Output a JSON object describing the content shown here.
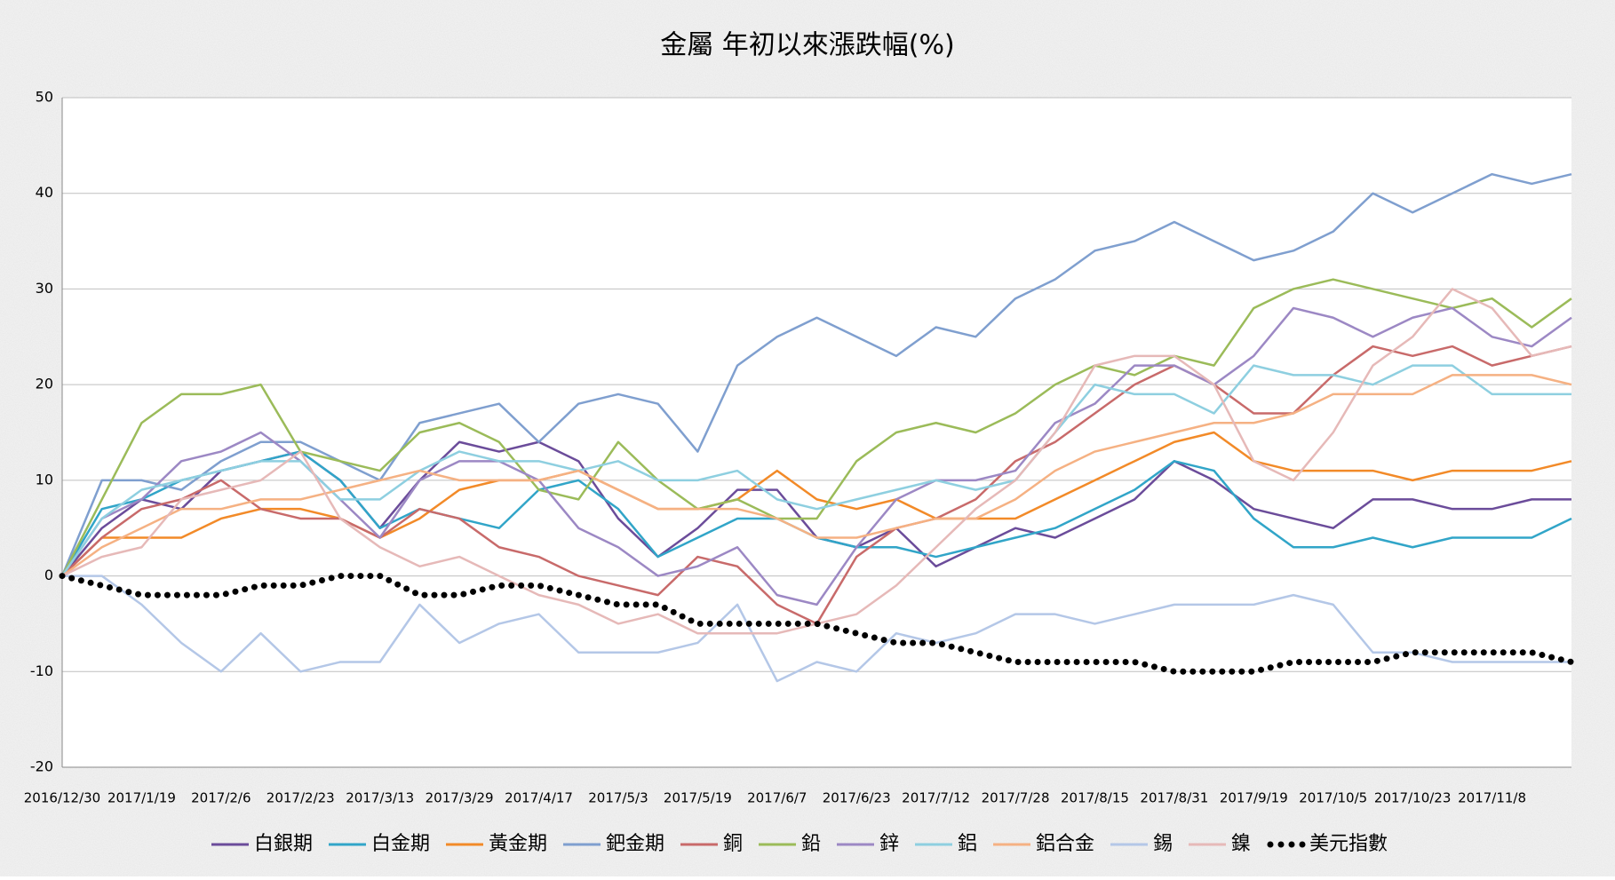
{
  "chart_data": {
    "type": "line",
    "title": "金屬 年初以來漲跌幅(%)",
    "categories": [
      "2016/12/30",
      null,
      "2017/1/19",
      null,
      "2017/2/6",
      null,
      "2017/2/23",
      null,
      "2017/3/13",
      null,
      "2017/3/29",
      null,
      "2017/4/17",
      null,
      "2017/5/3",
      null,
      "2017/5/19",
      null,
      "2017/6/7",
      null,
      "2017/6/23",
      null,
      "2017/7/12",
      null,
      "2017/7/28",
      null,
      "2017/8/15",
      null,
      "2017/8/31",
      null,
      "2017/9/19",
      null,
      "2017/10/5",
      null,
      "2017/10/23",
      null,
      "2017/11/8",
      null,
      null
    ],
    "ylim": [
      -20,
      50
    ],
    "yticks": [
      -20,
      -10,
      0,
      10,
      20,
      30,
      40,
      50
    ],
    "grid": true,
    "legend": "bottom",
    "series": [
      {
        "name": "白銀期",
        "color": "#6b4c9a",
        "values": [
          0,
          5,
          8,
          7,
          11,
          12,
          13,
          10,
          5,
          10,
          14,
          13,
          14,
          12,
          6,
          2,
          5,
          9,
          9,
          4,
          3,
          5,
          1,
          3,
          5,
          4,
          6,
          8,
          12,
          10,
          7,
          6,
          5,
          8,
          8,
          7,
          7,
          8,
          8
        ]
      },
      {
        "name": "白金期",
        "color": "#31a5c8",
        "values": [
          0,
          7,
          8,
          10,
          11,
          12,
          13,
          10,
          5,
          7,
          6,
          5,
          9,
          10,
          7,
          2,
          4,
          6,
          6,
          4,
          3,
          3,
          2,
          3,
          4,
          5,
          7,
          9,
          12,
          11,
          6,
          3,
          3,
          4,
          3,
          4,
          4,
          4,
          6
        ]
      },
      {
        "name": "黃金期",
        "color": "#f28a28",
        "values": [
          0,
          4,
          4,
          4,
          6,
          7,
          7,
          6,
          4,
          6,
          9,
          10,
          10,
          11,
          9,
          7,
          7,
          8,
          11,
          8,
          7,
          8,
          6,
          6,
          6,
          8,
          10,
          12,
          14,
          15,
          12,
          11,
          11,
          11,
          10,
          11,
          11,
          11,
          12
        ]
      },
      {
        "name": "鈀金期",
        "color": "#7f9fcf",
        "values": [
          0,
          10,
          10,
          9,
          12,
          14,
          14,
          12,
          10,
          16,
          17,
          18,
          14,
          18,
          19,
          18,
          13,
          22,
          25,
          27,
          25,
          23,
          26,
          25,
          29,
          31,
          34,
          35,
          37,
          35,
          33,
          34,
          36,
          40,
          38,
          40,
          42,
          41,
          42
        ]
      },
      {
        "name": "銅",
        "color": "#c86a6a",
        "values": [
          0,
          4,
          7,
          8,
          10,
          7,
          6,
          6,
          4,
          7,
          6,
          3,
          2,
          0,
          -1,
          -2,
          2,
          1,
          -3,
          -5,
          2,
          5,
          6,
          8,
          12,
          14,
          17,
          20,
          22,
          20,
          17,
          17,
          21,
          24,
          23,
          24,
          22,
          23,
          24
        ]
      },
      {
        "name": "鉛",
        "color": "#9bbb59",
        "values": [
          0,
          8,
          16,
          19,
          19,
          20,
          13,
          12,
          11,
          15,
          16,
          14,
          9,
          8,
          14,
          10,
          7,
          8,
          6,
          6,
          12,
          15,
          16,
          15,
          17,
          20,
          22,
          21,
          23,
          22,
          28,
          30,
          31,
          30,
          29,
          28,
          29,
          26,
          29
        ]
      },
      {
        "name": "鋅",
        "color": "#9c88c4",
        "values": [
          0,
          6,
          8,
          12,
          13,
          15,
          12,
          8,
          4,
          10,
          12,
          12,
          10,
          5,
          3,
          0,
          1,
          3,
          -2,
          -3,
          3,
          8,
          10,
          10,
          11,
          16,
          18,
          22,
          22,
          20,
          23,
          28,
          27,
          25,
          27,
          28,
          25,
          24,
          27
        ]
      },
      {
        "name": "鋁",
        "color": "#8ecfe0",
        "values": [
          0,
          6,
          9,
          10,
          11,
          12,
          12,
          8,
          8,
          11,
          13,
          12,
          12,
          11,
          12,
          10,
          10,
          11,
          8,
          7,
          8,
          9,
          10,
          9,
          10,
          15,
          20,
          19,
          19,
          17,
          22,
          21,
          21,
          20,
          22,
          22,
          19,
          19,
          19
        ]
      },
      {
        "name": "鋁合金",
        "color": "#f5b183",
        "values": [
          0,
          3,
          5,
          7,
          7,
          8,
          8,
          9,
          10,
          11,
          10,
          10,
          10,
          11,
          9,
          7,
          7,
          7,
          6,
          4,
          4,
          5,
          6,
          6,
          8,
          11,
          13,
          14,
          15,
          16,
          16,
          17,
          19,
          19,
          19,
          21,
          21,
          21,
          20
        ]
      },
      {
        "name": "錫",
        "color": "#b4c7e7",
        "values": [
          0,
          0,
          -3,
          -7,
          -10,
          -6,
          -10,
          -9,
          -9,
          -3,
          -7,
          -5,
          -4,
          -8,
          -8,
          -8,
          -7,
          -3,
          -11,
          -9,
          -10,
          -6,
          -7,
          -6,
          -4,
          -4,
          -5,
          -4,
          -3,
          -3,
          -3,
          -2,
          -3,
          -8,
          -8,
          -9,
          -9,
          -9,
          -9
        ]
      },
      {
        "name": "鎳",
        "color": "#e6b9b8",
        "values": [
          0,
          2,
          3,
          8,
          9,
          10,
          13,
          6,
          3,
          1,
          2,
          0,
          -2,
          -3,
          -5,
          -4,
          -6,
          -6,
          -6,
          -5,
          -4,
          -1,
          3,
          7,
          10,
          15,
          22,
          23,
          23,
          20,
          12,
          10,
          15,
          22,
          25,
          30,
          28,
          23,
          24
        ]
      },
      {
        "name": "美元指數",
        "color": "#000000",
        "style": "dotted",
        "values": [
          0,
          -1,
          -2,
          -2,
          -2,
          -1,
          -1,
          0,
          0,
          -2,
          -2,
          -1,
          -1,
          -2,
          -3,
          -3,
          -5,
          -5,
          -5,
          -5,
          -6,
          -7,
          -7,
          -8,
          -9,
          -9,
          -9,
          -9,
          -10,
          -10,
          -10,
          -9,
          -9,
          -9,
          -8,
          -8,
          -8,
          -8,
          -9
        ]
      }
    ]
  }
}
